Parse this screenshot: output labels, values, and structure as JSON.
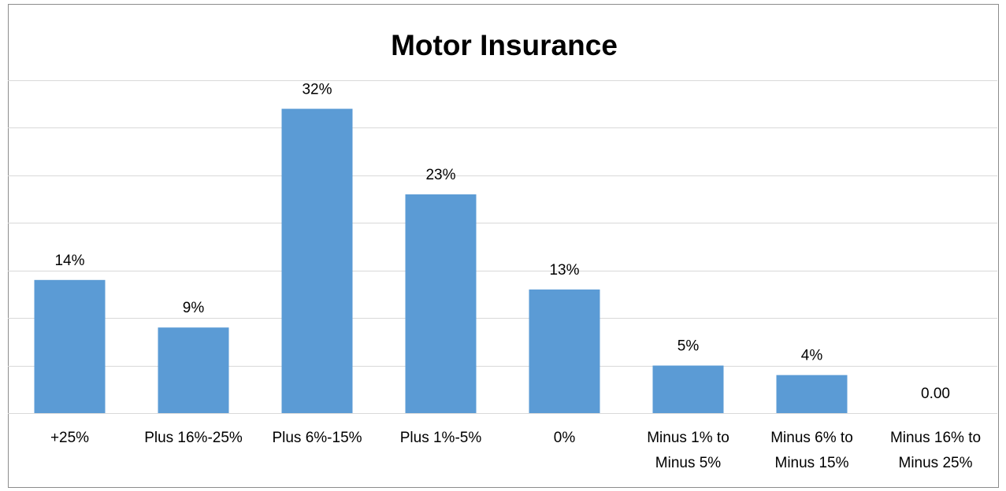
{
  "chart_data": {
    "type": "bar",
    "title": "Motor Insurance",
    "categories": [
      "+25%",
      "Plus 16%-25%",
      "Plus 6%-15%",
      "Plus 1%-5%",
      "0%",
      "Minus 1% to Minus 5%",
      "Minus 6% to Minus 15%",
      "Minus 16% to Minus 25%"
    ],
    "values": [
      14,
      9,
      32,
      23,
      13,
      5,
      4,
      0
    ],
    "value_labels": [
      "14%",
      "9%",
      "32%",
      "23%",
      "13%",
      "5%",
      "4%",
      "0.00"
    ],
    "color": "#5b9bd5",
    "ylim": [
      0,
      35
    ],
    "yticks": [
      0,
      5,
      10,
      15,
      20,
      25,
      30,
      35
    ],
    "grid": true
  }
}
